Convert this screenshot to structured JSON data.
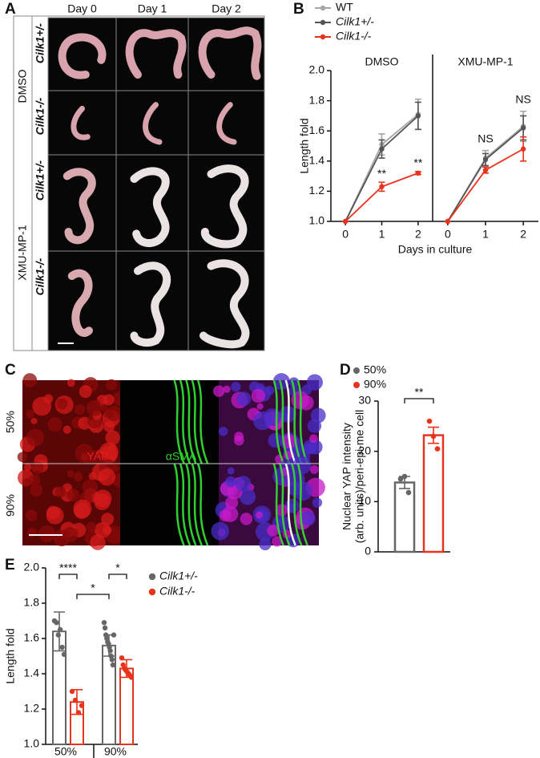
{
  "panel_a": {
    "label": "A",
    "columns": [
      "Day 0",
      "Day 1",
      "Day 2"
    ],
    "groups": [
      {
        "label": "DMSO",
        "rows": [
          "Cilk1+/-",
          "Cilk1-/-"
        ]
      },
      {
        "label": "XMU-MP-1",
        "rows": [
          "Cilk1+/-",
          "Cilk1-/-"
        ]
      }
    ]
  },
  "panel_c": {
    "label": "C",
    "rows": [
      "50%",
      "90%"
    ],
    "channels": [
      "YAP",
      "αSMA"
    ]
  },
  "chart_data": [
    {
      "type": "line",
      "panel": "B",
      "title": "DMSO",
      "ylabel": "Length fold",
      "xlabel": "Days in culture",
      "x": [
        0,
        1,
        2
      ],
      "xlim": [
        -0.4,
        2.4
      ],
      "xticks": [
        0,
        1,
        2
      ],
      "ylim": [
        1,
        2
      ],
      "yticks": [
        {
          "value": 1,
          "label": "1.0"
        },
        1.2,
        1.4,
        1.6,
        1.8,
        {
          "value": 2,
          "label": "2.0"
        }
      ],
      "series": [
        {
          "name": "WT",
          "color": "#a6a6a6",
          "values": [
            1,
            1.51,
            1.71
          ],
          "errors": [
            0,
            0.07,
            0.1
          ]
        },
        {
          "name": "Cilk1+/-",
          "color": "#555555",
          "values": [
            1,
            1.48,
            1.7
          ],
          "errors": [
            0,
            0.06,
            0.09
          ]
        },
        {
          "name": "Cilk1-/-",
          "color": "#e8341c",
          "values": [
            1,
            1.23,
            1.32
          ],
          "errors": [
            0,
            0.03,
            0.01
          ]
        }
      ],
      "annotations": [
        {
          "x": 1,
          "text": "**",
          "series": 2
        },
        {
          "x": 2,
          "text": "**",
          "series": 2
        }
      ]
    },
    {
      "type": "line",
      "title": "XMU-MP-1",
      "x": [
        0,
        1,
        2
      ],
      "xlim": [
        -0.4,
        2.4
      ],
      "xticks": [
        0,
        1,
        2
      ],
      "ylim": [
        1,
        2
      ],
      "series": [
        {
          "color": "#a6a6a6",
          "values": [
            1,
            1.42,
            1.63
          ],
          "errors": [
            0,
            0.05,
            0.1
          ]
        },
        {
          "color": "#555555",
          "values": [
            1,
            1.41,
            1.62
          ],
          "errors": [
            0,
            0.04,
            0.08
          ]
        },
        {
          "color": "#e8341c",
          "values": [
            1,
            1.34,
            1.48
          ],
          "errors": [
            0,
            0.02,
            0.08
          ]
        }
      ],
      "annotations": [
        {
          "x": 1,
          "text": "NS"
        },
        {
          "x": 2,
          "text": "NS"
        }
      ]
    },
    {
      "type": "bar",
      "panel": "D",
      "ylabel": [
        "Nuclear YAP intensity",
        "(arb. units)/peri-epi-me cell"
      ],
      "categories": [
        "50%",
        "90%"
      ],
      "colors": [
        "#666666",
        "#e8341c"
      ],
      "values": [
        13.8,
        23.2
      ],
      "errors": [
        1.2,
        1.6
      ],
      "points": [
        [
          14.5,
          15,
          11.8
        ],
        [
          26,
          23,
          20.5
        ]
      ],
      "ylim": [
        0,
        30
      ],
      "yticks": [
        0,
        10,
        20,
        30
      ],
      "annotations": [
        {
          "text": "**"
        }
      ]
    },
    {
      "type": "grouped-bar",
      "panel": "E",
      "ylabel": "Length fold",
      "categories": [
        "50%",
        "90%"
      ],
      "ylim": [
        1,
        2
      ],
      "yticks": [
        {
          "value": 1,
          "label": "1.0"
        },
        1.2,
        1.4,
        1.6,
        1.8,
        {
          "value": 2,
          "label": "2.0"
        }
      ],
      "series": [
        {
          "name": "Cilk1+/-",
          "color": "#666666",
          "values": [
            1.64,
            1.56
          ],
          "errors": [
            0.11,
            0.06
          ],
          "points": [
            [
              1.7,
              1.69,
              1.62,
              1.65,
              1.55,
              1.51
            ],
            [
              1.69,
              1.66,
              1.62,
              1.6,
              1.58,
              1.57,
              1.55,
              1.53,
              1.5,
              1.48,
              1.45,
              1.62
            ]
          ]
        },
        {
          "name": "Cilk1-/-",
          "color": "#e8341c",
          "values": [
            1.24,
            1.43
          ],
          "errors": [
            0.07,
            0.05
          ],
          "points": [
            [
              1.3,
              1.25,
              1.18,
              1.22
            ],
            [
              1.49,
              1.45,
              1.43,
              1.42,
              1.41,
              1.4,
              1.39,
              1.38
            ]
          ]
        }
      ],
      "annotations": [
        {
          "text": "****"
        },
        {
          "text": "*"
        },
        {
          "text": "*"
        }
      ]
    }
  ]
}
